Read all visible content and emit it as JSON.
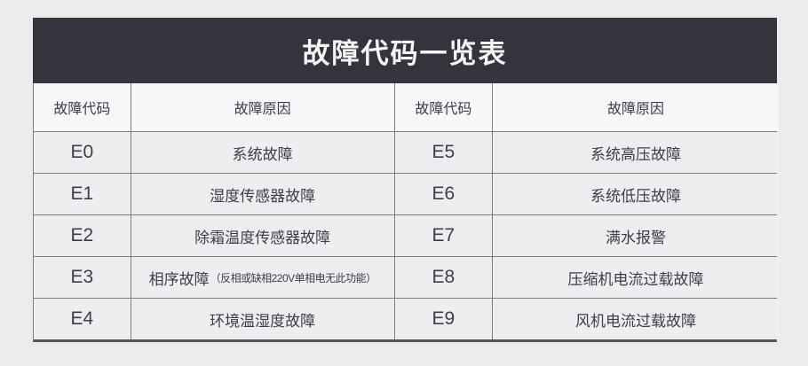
{
  "title": "故障代码一览表",
  "colors": {
    "page_background": "#ebebeb",
    "title_bar_background": "#34343c",
    "title_text": "#f5f5f5",
    "cell_background": "#ededef",
    "header_cell_background": "#f7f7f9",
    "grid_line": "#7d7d86",
    "cell_text": "#3e3e4a"
  },
  "table": {
    "headers": {
      "left_code": "故障代码",
      "left_cause": "故障原因",
      "right_code": "故障代码",
      "right_cause": "故障原因"
    },
    "rows": [
      {
        "left": {
          "code": "E0",
          "cause": "系统故障",
          "cause_note": ""
        },
        "right": {
          "code": "E5",
          "cause": "系统高压故障"
        }
      },
      {
        "left": {
          "code": "E1",
          "cause": "湿度传感器故障",
          "cause_note": ""
        },
        "right": {
          "code": "E6",
          "cause": "系统低压故障"
        }
      },
      {
        "left": {
          "code": "E2",
          "cause": "除霜温度传感器故障",
          "cause_note": ""
        },
        "right": {
          "code": "E7",
          "cause": "满水报警"
        }
      },
      {
        "left": {
          "code": "E3",
          "cause": "相序故障",
          "cause_note": "（反相或缺相220V单相电无此功能）"
        },
        "right": {
          "code": "E8",
          "cause": "压缩机电流过载故障"
        }
      },
      {
        "left": {
          "code": "E4",
          "cause": "环境温湿度故障",
          "cause_note": ""
        },
        "right": {
          "code": "E9",
          "cause": "风机电流过载故障"
        }
      }
    ]
  }
}
